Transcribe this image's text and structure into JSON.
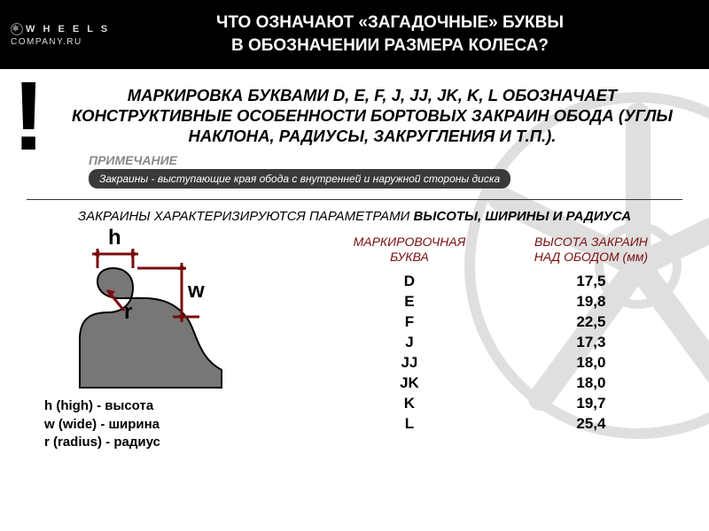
{
  "logo": {
    "line1": "W H E E L S",
    "line2": "COMPANY.RU"
  },
  "header": {
    "line1": "ЧТО ОЗНАЧАЮТ «ЗАГАДОЧНЫЕ» БУКВЫ",
    "line2": "В ОБОЗНАЧЕНИИ РАЗМЕРА КОЛЕСА?"
  },
  "qmark": "?",
  "excl": "!",
  "main_text": "МАРКИРОВКА БУКВАМИ D, E, F, J, JJ, JK, K, L ОБОЗНАЧАЕТ КОНСТРУКТИВНЫЕ ОСОБЕННОСТИ БОРТОВЫХ ЗАКРАИН ОБОДА (УГЛЫ НАКЛОНА, РАДИУСЫ, ЗАКРУГЛЕНИЯ И Т.П.).",
  "note": {
    "label": "ПРИМЕЧАНИЕ",
    "text": "Закраины - выступающие края обода с внутренней и наружной стороны диска"
  },
  "sub_title": {
    "prefix": "ЗАКРАИНЫ ХАРАКТЕРИЗИРУЮТСЯ ПАРАМЕТРАМИ ",
    "bold": "ВЫСОТЫ, ШИРИНЫ И РАДИУСА"
  },
  "diagram": {
    "h": "h",
    "w": "w",
    "r": "r",
    "legend_h": "h (high) - высота",
    "legend_w": "w (wide) - ширина",
    "legend_r": "r (radius) - радиус"
  },
  "table": {
    "col1_l1": "МАРКИРОВОЧНАЯ",
    "col1_l2": "БУКВА",
    "col2_l1": "ВЫСОТА ЗАКРАИН",
    "col2_l2": "НАД ОБОДОМ (мм)",
    "rows": [
      {
        "letter": "D",
        "height": "17,5"
      },
      {
        "letter": "E",
        "height": "19,8"
      },
      {
        "letter": "F",
        "height": "22,5"
      },
      {
        "letter": "J",
        "height": "17,3"
      },
      {
        "letter": "JJ",
        "height": "18,0"
      },
      {
        "letter": "JK",
        "height": "18,0"
      },
      {
        "letter": "K",
        "height": "19,7"
      },
      {
        "letter": "L",
        "height": "25,4"
      }
    ]
  },
  "colors": {
    "accent": "#7a0c0c",
    "header_bg": "#000000",
    "note_bg": "#3a3a3a"
  }
}
